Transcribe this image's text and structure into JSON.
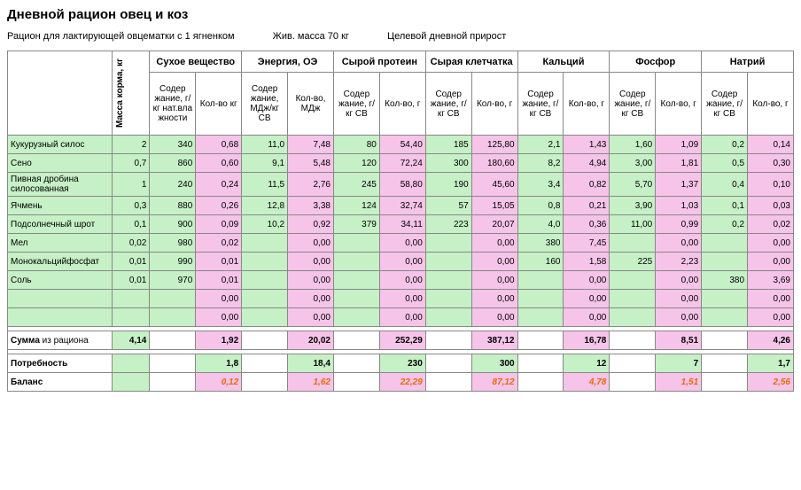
{
  "title": "Дневной рацион овец и коз",
  "subtitle": {
    "desc": "Рацион для лактирующей овцематки с 1 ягненком",
    "mass": "Жив. масса 70 кг",
    "target": "Целевой дневной прирост"
  },
  "headers": {
    "mass_korma": "Масса корма, кг",
    "groups": [
      "Сухое вещество",
      "Энергия, ОЭ",
      "Сырой протеин",
      "Сырая клетчатка",
      "Кальций",
      "Фосфор",
      "Натрий"
    ],
    "sub": {
      "sv_content": "Содер жание, г/кг нат.вла жности",
      "sv_qty": "Кол-во кг",
      "en_content": "Содер жание, МДж/кг СВ",
      "en_qty": "Кол-во, МДж",
      "prot_content": "Содер жание, г/кг СВ",
      "prot_qty": "Кол-во, г",
      "fib_content": "Содер жание, г/кг СВ",
      "fib_qty": "Кол-во, г",
      "ca_content": "Содер жание, г/кг СВ",
      "ca_qty": "Кол-во, г",
      "p_content": "Содер жание, г/кг СВ",
      "p_qty": "Кол-во, г",
      "na_content": "Содер жание, г/кг СВ",
      "na_qty": "Кол-во, г"
    }
  },
  "rows": [
    {
      "name": "Кукурузный силос",
      "mass": "2",
      "sv_c": "340",
      "sv_q": "0,68",
      "en_c": "11,0",
      "en_q": "7,48",
      "pr_c": "80",
      "pr_q": "54,40",
      "fi_c": "185",
      "fi_q": "125,80",
      "ca_c": "2,1",
      "ca_q": "1,43",
      "p_c": "1,60",
      "p_q": "1,09",
      "na_c": "0,2",
      "na_q": "0,14"
    },
    {
      "name": "Сено",
      "mass": "0,7",
      "sv_c": "860",
      "sv_q": "0,60",
      "en_c": "9,1",
      "en_q": "5,48",
      "pr_c": "120",
      "pr_q": "72,24",
      "fi_c": "300",
      "fi_q": "180,60",
      "ca_c": "8,2",
      "ca_q": "4,94",
      "p_c": "3,00",
      "p_q": "1,81",
      "na_c": "0,5",
      "na_q": "0,30"
    },
    {
      "name": "Пивная дробина силосованная",
      "mass": "1",
      "sv_c": "240",
      "sv_q": "0,24",
      "en_c": "11,5",
      "en_q": "2,76",
      "pr_c": "245",
      "pr_q": "58,80",
      "fi_c": "190",
      "fi_q": "45,60",
      "ca_c": "3,4",
      "ca_q": "0,82",
      "p_c": "5,70",
      "p_q": "1,37",
      "na_c": "0,4",
      "na_q": "0,10"
    },
    {
      "name": "Ячмень",
      "mass": "0,3",
      "sv_c": "880",
      "sv_q": "0,26",
      "en_c": "12,8",
      "en_q": "3,38",
      "pr_c": "124",
      "pr_q": "32,74",
      "fi_c": "57",
      "fi_q": "15,05",
      "ca_c": "0,8",
      "ca_q": "0,21",
      "p_c": "3,90",
      "p_q": "1,03",
      "na_c": "0,1",
      "na_q": "0,03"
    },
    {
      "name": "Подсолнечный шрот",
      "mass": "0,1",
      "sv_c": "900",
      "sv_q": "0,09",
      "en_c": "10,2",
      "en_q": "0,92",
      "pr_c": "379",
      "pr_q": "34,11",
      "fi_c": "223",
      "fi_q": "20,07",
      "ca_c": "4,0",
      "ca_q": "0,36",
      "p_c": "11,00",
      "p_q": "0,99",
      "na_c": "0,2",
      "na_q": "0,02"
    },
    {
      "name": "Мел",
      "mass": "0,02",
      "sv_c": "980",
      "sv_q": "0,02",
      "en_c": "",
      "en_q": "0,00",
      "pr_c": "",
      "pr_q": "0,00",
      "fi_c": "",
      "fi_q": "0,00",
      "ca_c": "380",
      "ca_q": "7,45",
      "p_c": "",
      "p_q": "0,00",
      "na_c": "",
      "na_q": "0,00"
    },
    {
      "name": "Монокальцийфосфат",
      "mass": "0,01",
      "sv_c": "990",
      "sv_q": "0,01",
      "en_c": "",
      "en_q": "0,00",
      "pr_c": "",
      "pr_q": "0,00",
      "fi_c": "",
      "fi_q": "0,00",
      "ca_c": "160",
      "ca_q": "1,58",
      "p_c": "225",
      "p_q": "2,23",
      "na_c": "",
      "na_q": "0,00"
    },
    {
      "name": "Соль",
      "mass": "0,01",
      "sv_c": "970",
      "sv_q": "0,01",
      "en_c": "",
      "en_q": "0,00",
      "pr_c": "",
      "pr_q": "0,00",
      "fi_c": "",
      "fi_q": "0,00",
      "ca_c": "",
      "ca_q": "0,00",
      "p_c": "",
      "p_q": "0,00",
      "na_c": "380",
      "na_q": "3,69"
    },
    {
      "name": "",
      "mass": "",
      "sv_c": "",
      "sv_q": "0,00",
      "en_c": "",
      "en_q": "0,00",
      "pr_c": "",
      "pr_q": "0,00",
      "fi_c": "",
      "fi_q": "0,00",
      "ca_c": "",
      "ca_q": "0,00",
      "p_c": "",
      "p_q": "0,00",
      "na_c": "",
      "na_q": "0,00"
    },
    {
      "name": "",
      "mass": "",
      "sv_c": "",
      "sv_q": "0,00",
      "en_c": "",
      "en_q": "0,00",
      "pr_c": "",
      "pr_q": "0,00",
      "fi_c": "",
      "fi_q": "0,00",
      "ca_c": "",
      "ca_q": "0,00",
      "p_c": "",
      "p_q": "0,00",
      "na_c": "",
      "na_q": "0,00"
    }
  ],
  "summary": {
    "sum_label": "Сумма",
    "sum_suffix": " из рациона",
    "sum": {
      "mass": "4,14",
      "sv_q": "1,92",
      "en_q": "20,02",
      "pr_q": "252,29",
      "fi_q": "387,12",
      "ca_q": "16,78",
      "p_q": "8,51",
      "na_q": "4,26"
    },
    "need_label": "Потребность",
    "need": {
      "sv_q": "1,8",
      "en_q": "18,4",
      "pr_q": "230",
      "fi_q": "300",
      "ca_q": "12",
      "p_q": "7",
      "na_q": "1,7"
    },
    "bal_label": "Баланс",
    "bal": {
      "sv_q": "0,12",
      "en_q": "1,62",
      "pr_q": "22,29",
      "fi_q": "87,12",
      "ca_q": "4,78",
      "p_q": "1,51",
      "na_q": "2,56"
    }
  },
  "colors": {
    "green": "#c6f0c6",
    "pink": "#f5c4e8",
    "orange": "#e36c09"
  }
}
